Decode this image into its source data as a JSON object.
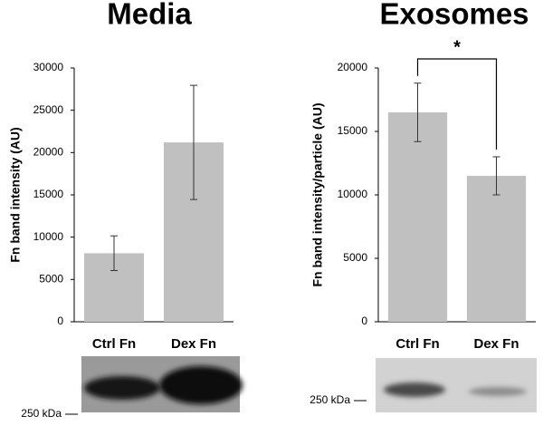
{
  "chart_data": [
    {
      "type": "bar",
      "title": "Media",
      "y_label": "Fn band intensity (AU)",
      "categories": [
        "Ctrl Fn",
        "Dex Fn"
      ],
      "values": [
        8100,
        21200
      ],
      "errors": [
        2050,
        6750
      ],
      "color": "#c0c0c0",
      "ylim": [
        0,
        30000
      ],
      "yticks": [
        0,
        5000,
        10000,
        15000,
        20000,
        25000,
        30000
      ],
      "blot_label": "250 kDa"
    },
    {
      "type": "bar",
      "title": "Exosomes",
      "y_label": "Fn band intensity/particle (AU)",
      "categories": [
        "Ctrl Fn",
        "Dex Fn"
      ],
      "values": [
        16500,
        11500
      ],
      "errors": [
        2300,
        1500
      ],
      "color": "#c0c0c0",
      "ylim": [
        0,
        20000
      ],
      "yticks": [
        0,
        5000,
        10000,
        15000,
        20000
      ],
      "blot_label": "250 kDa",
      "significance": "*"
    }
  ]
}
